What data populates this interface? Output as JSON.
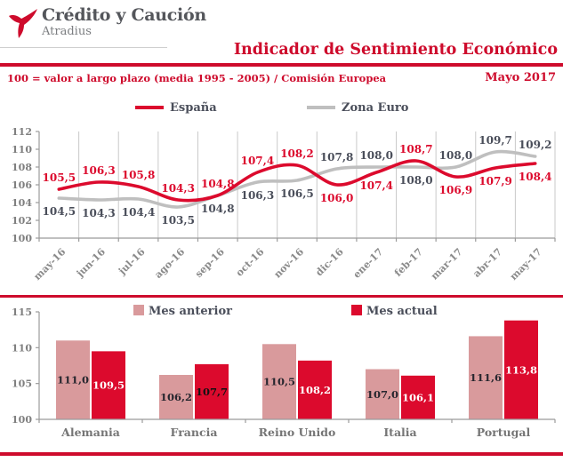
{
  "header": {
    "logo": {
      "brand": "Crédito y Caución",
      "sub": "Atradius"
    },
    "title": "Indicador de Sentimiento Económico",
    "subtitle": "100 = valor a largo plazo (media 1995 - 2005) / Comisión Europea",
    "period": "Mayo 2017"
  },
  "colors": {
    "brand_red": "#CE0B2C",
    "chart_red": "#DC0A2D",
    "pink": "#D99A9C",
    "gray_line": "#BFBFBF",
    "slate": "#4A4E5A",
    "axis": "#9B9B9B",
    "grid": "#C9C9C9",
    "tick_label": "#7F7F7F",
    "month_label": "#8A8A8A",
    "country_label": "#757575"
  },
  "chart_data": [
    {
      "type": "line",
      "title": "",
      "categories": [
        "may-16",
        "jun-16",
        "jul-16",
        "ago-16",
        "sep-16",
        "oct-16",
        "nov-16",
        "dic-16",
        "ene-17",
        "feb-17",
        "mar-17",
        "abr-17",
        "may-17"
      ],
      "series": [
        {
          "name": "España",
          "color": "#DC0A2D",
          "label_color": "#DC0A2D",
          "values": [
            105.5,
            106.3,
            105.8,
            104.3,
            104.8,
            107.4,
            108.2,
            106.0,
            107.4,
            108.7,
            106.9,
            107.9,
            108.4
          ],
          "label_pos": [
            "a",
            "a",
            "a",
            "a",
            "a",
            "a",
            "a",
            "b",
            "b",
            "a",
            "b",
            "b",
            "b"
          ]
        },
        {
          "name": "Zona Euro",
          "color": "#BFBFBF",
          "label_color": "#4A4E5A",
          "values": [
            104.5,
            104.3,
            104.4,
            103.5,
            104.8,
            106.3,
            106.5,
            107.8,
            108.0,
            108.0,
            108.0,
            109.7,
            109.2
          ],
          "label_pos": [
            "b",
            "b",
            "b",
            "b",
            "b",
            "b",
            "b",
            "a",
            "a",
            "b",
            "a",
            "a",
            "a"
          ]
        }
      ],
      "ylim": [
        100,
        112
      ],
      "ytick_step": 2,
      "grid": "vertical",
      "legend_position": "top",
      "decimal": "comma"
    },
    {
      "type": "bar",
      "title": "",
      "categories": [
        "Alemania",
        "Francia",
        "Reino Unido",
        "Italia",
        "Portugal"
      ],
      "series": [
        {
          "name": "Mes anterior",
          "color": "#D99A9C",
          "values": [
            111.0,
            106.2,
            110.5,
            107.0,
            111.6
          ],
          "label_colors": [
            "#26262E",
            "#26262E",
            "#26262E",
            "#26262E",
            "#26262E"
          ]
        },
        {
          "name": "Mes actual",
          "color": "#DC0A2D",
          "values": [
            109.5,
            107.7,
            108.2,
            106.1,
            113.8
          ],
          "label_colors": [
            "#FFFFFF",
            "#111111",
            "#FFFFFF",
            "#FFFFFF",
            "#FFFFFF"
          ]
        }
      ],
      "ylim": [
        100,
        115
      ],
      "ytick_step": 5,
      "grid": "none",
      "legend_position": "top",
      "decimal": "comma"
    }
  ]
}
